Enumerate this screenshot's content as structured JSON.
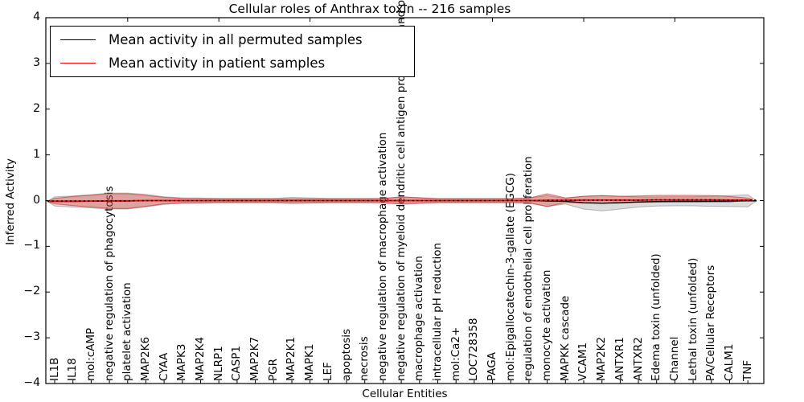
{
  "figure": {
    "title": "Cellular roles of Anthrax toxin -- 216 samples",
    "xlabel": "Cellular Entities",
    "ylabel": "Inferred Activity"
  },
  "legend": {
    "items": [
      {
        "label": "Mean activity in all permuted samples",
        "color": "#000000"
      },
      {
        "label": "Mean activity in patient samples",
        "color": "#ff0000"
      }
    ]
  },
  "chart_data": {
    "type": "violin",
    "title": "Cellular roles of Anthrax toxin -- 216 samples",
    "xlabel": "Cellular Entities",
    "ylabel": "Inferred Activity",
    "ylim": [
      -4,
      4
    ],
    "yticks": [
      4,
      3,
      2,
      1,
      0,
      -1,
      -2,
      -3,
      -4
    ],
    "grid": false,
    "legend_position": "upper left",
    "categories": [
      "IL1B",
      "IL18",
      "mol:cAMP",
      "negative regulation of phagocytosis",
      "platelet activation",
      "MAP2K6",
      "CYAA",
      "MAPK3",
      "MAP2K4",
      "NLRP1",
      "CASP1",
      "MAP2K7",
      "PGR",
      "MAP2K1",
      "MAPK1",
      "LEF",
      "apoptosis",
      "necrosis",
      "negative regulation of macrophage activation",
      "negative regulation of myeloid dendritic cell antigen processing and presentation",
      "macrophage activation",
      "intracellular pH reduction",
      "mol:Ca2+",
      "LOC728358",
      "PAGA",
      "mol:Epigallocatechin-3-gallate (EGCG)",
      "regulation of endothelial cell proliferation",
      "monocyte activation",
      "MAPKK cascade",
      "VCAM1",
      "MAP2K2",
      "ANTXR1",
      "ANTXR2",
      "Edema toxin (unfolded)",
      "Channel",
      "Lethal toxin (unfolded)",
      "PA/Cellular Receptors",
      "CALM1",
      "TNF"
    ],
    "series": [
      {
        "name": "Mean activity in all permuted samples",
        "line_color": "#000000",
        "fill_color": "rgba(130,130,130,0.28)",
        "edge_color": "rgba(120,120,120,0.5)",
        "mean": [
          -0.02,
          -0.02,
          -0.015,
          -0.01,
          -0.01,
          0,
          0,
          0,
          0,
          0,
          0,
          0,
          0,
          0,
          0,
          0,
          0,
          0,
          0,
          0,
          0,
          0,
          0,
          0,
          0,
          0,
          0,
          -0.01,
          -0.015,
          -0.045,
          -0.055,
          -0.045,
          -0.03,
          -0.02,
          -0.015,
          -0.015,
          -0.015,
          -0.01,
          -0.005
        ],
        "halfwidth": [
          0.1,
          0.12,
          0.145,
          0.175,
          0.175,
          0.135,
          0.085,
          0.06,
          0.055,
          0.05,
          0.05,
          0.05,
          0.05,
          0.07,
          0.06,
          0.05,
          0.05,
          0.05,
          0.05,
          0.08,
          0.065,
          0.05,
          0.05,
          0.05,
          0.05,
          0.05,
          0.055,
          0.12,
          0.06,
          0.14,
          0.17,
          0.14,
          0.11,
          0.1,
          0.1,
          0.1,
          0.11,
          0.12,
          0.13
        ]
      },
      {
        "name": "Mean activity in patient samples",
        "line_color": "#ff0000",
        "fill_color": "rgba(222,45,38,0.32)",
        "edge_color": "rgba(205,35,35,0.6)",
        "mean": [
          -0.01,
          -0.01,
          -0.01,
          -0.005,
          -0.005,
          0,
          0,
          0,
          0,
          0,
          0,
          0,
          0,
          0,
          0,
          0,
          0,
          0,
          0,
          0,
          0,
          0,
          0,
          0,
          0,
          0,
          0,
          0.005,
          0.005,
          0.01,
          0.01,
          0.01,
          0.01,
          0.015,
          0.015,
          0.015,
          0.015,
          0.01,
          0.01
        ],
        "center": [
          -0.01,
          -0.01,
          -0.01,
          -0.01,
          -0.01,
          -0.005,
          0,
          0,
          0,
          0,
          0,
          0,
          0,
          0,
          0,
          0,
          0,
          0,
          0,
          0.005,
          0.005,
          0,
          0,
          0,
          0,
          0,
          0.005,
          0.01,
          0.01,
          0.02,
          0.02,
          0.02,
          0.03,
          0.04,
          0.04,
          0.04,
          0.04,
          0.03,
          0.03
        ],
        "halfwidth": [
          0.06,
          0.1,
          0.13,
          0.16,
          0.16,
          0.12,
          0.07,
          0.05,
          0.045,
          0.04,
          0.04,
          0.04,
          0.04,
          0.04,
          0.04,
          0.04,
          0.04,
          0.04,
          0.045,
          0.075,
          0.055,
          0.04,
          0.04,
          0.04,
          0.04,
          0.04,
          0.05,
          0.14,
          0.05,
          0.075,
          0.085,
          0.075,
          0.07,
          0.075,
          0.075,
          0.075,
          0.07,
          0.06,
          0.025
        ]
      }
    ]
  }
}
